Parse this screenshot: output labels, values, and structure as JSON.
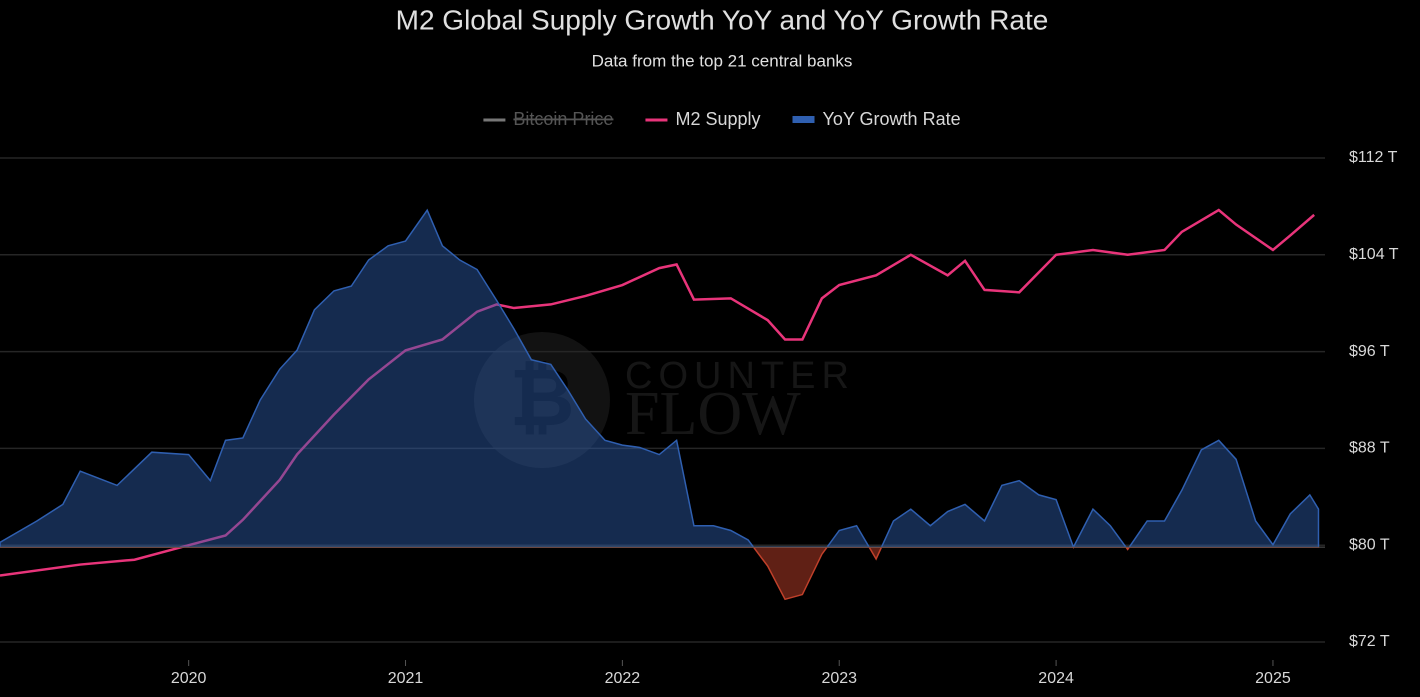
{
  "chart_data": {
    "type": "line",
    "title": "M2 Global Supply Growth YoY and YoY Growth Rate",
    "subtitle": "Data from the top 21 central banks",
    "watermark": [
      "COUNTER",
      "FLOW"
    ],
    "legend": "top",
    "grid": true,
    "xlim": [
      2019.13,
      2025.24
    ],
    "xticks": [
      2020,
      2021,
      2022,
      2023,
      2024,
      2025
    ],
    "ylim": [
      72,
      112
    ],
    "yticks": [
      {
        "value": 72,
        "label": "$72 T"
      },
      {
        "value": 80,
        "label": "$80 T"
      },
      {
        "value": 88,
        "label": "$88 T"
      },
      {
        "value": 96,
        "label": "$96 T"
      },
      {
        "value": 104,
        "label": "$104 T"
      },
      {
        "value": 112,
        "label": "$112 T"
      }
    ],
    "y2lim": [
      -4,
      16.4
    ],
    "series": [
      {
        "name": "Bitcoin Price",
        "color": "#777777",
        "visible": false
      },
      {
        "name": "M2 Supply",
        "color": "#e8347a",
        "x": [
          2019.13,
          2019.5,
          2019.75,
          2020.0,
          2020.17,
          2020.25,
          2020.42,
          2020.5,
          2020.67,
          2020.83,
          2021.0,
          2021.17,
          2021.33,
          2021.42,
          2021.5,
          2021.67,
          2021.83,
          2022.0,
          2022.17,
          2022.25,
          2022.33,
          2022.5,
          2022.67,
          2022.75,
          2022.83,
          2022.92,
          2023.0,
          2023.17,
          2023.33,
          2023.5,
          2023.58,
          2023.67,
          2023.83,
          2024.0,
          2024.17,
          2024.33,
          2024.5,
          2024.58,
          2024.75,
          2024.83,
          2025.0,
          2025.08,
          2025.19
        ],
        "values": [
          77.5,
          78.4,
          78.8,
          80.0,
          80.8,
          82.1,
          85.4,
          87.5,
          90.8,
          93.7,
          96.1,
          97.0,
          99.3,
          99.9,
          99.6,
          99.9,
          100.6,
          101.5,
          102.9,
          103.2,
          100.3,
          100.4,
          98.6,
          97.0,
          97.0,
          100.4,
          101.5,
          102.3,
          104.0,
          102.3,
          103.5,
          101.1,
          100.9,
          104.0,
          104.4,
          104.0,
          104.4,
          105.9,
          107.7,
          106.5,
          104.4,
          105.6,
          107.3
        ]
      },
      {
        "name": "YoY Growth Rate",
        "color": "#2f5fb0",
        "axis": "y2",
        "negative_color": "#c0402a",
        "x": [
          2019.13,
          2019.3,
          2019.42,
          2019.5,
          2019.67,
          2019.83,
          2020.0,
          2020.1,
          2020.17,
          2020.25,
          2020.33,
          2020.42,
          2020.5,
          2020.58,
          2020.67,
          2020.75,
          2020.83,
          2020.92,
          2021.0,
          2021.1,
          2021.17,
          2021.25,
          2021.33,
          2021.42,
          2021.5,
          2021.58,
          2021.67,
          2021.75,
          2021.83,
          2021.92,
          2022.0,
          2022.08,
          2022.17,
          2022.25,
          2022.33,
          2022.42,
          2022.5,
          2022.58,
          2022.67,
          2022.75,
          2022.83,
          2022.92,
          2023.0,
          2023.08,
          2023.17,
          2023.25,
          2023.33,
          2023.42,
          2023.5,
          2023.58,
          2023.67,
          2023.75,
          2023.83,
          2023.92,
          2024.0,
          2024.08,
          2024.17,
          2024.25,
          2024.33,
          2024.42,
          2024.5,
          2024.58,
          2024.67,
          2024.75,
          2024.83,
          2024.92,
          2025.0,
          2025.08,
          2025.17,
          2025.21
        ],
        "values": [
          0.2,
          1.1,
          1.8,
          3.2,
          2.6,
          4.0,
          3.9,
          2.8,
          4.5,
          4.6,
          6.2,
          7.5,
          8.3,
          10.0,
          10.8,
          11.0,
          12.1,
          12.7,
          12.9,
          14.2,
          12.7,
          12.1,
          11.7,
          10.4,
          9.2,
          7.9,
          7.7,
          6.6,
          5.4,
          4.5,
          4.3,
          4.2,
          3.9,
          4.5,
          0.9,
          0.9,
          0.7,
          0.3,
          -0.8,
          -2.2,
          -2.0,
          -0.3,
          0.7,
          0.9,
          -0.5,
          1.1,
          1.6,
          0.9,
          1.5,
          1.8,
          1.1,
          2.6,
          2.8,
          2.2,
          2.0,
          0,
          1.6,
          0.9,
          -0.1,
          1.1,
          1.1,
          2.4,
          4.1,
          4.5,
          3.7,
          1.1,
          0.1,
          1.4,
          2.2,
          1.6
        ]
      }
    ]
  }
}
